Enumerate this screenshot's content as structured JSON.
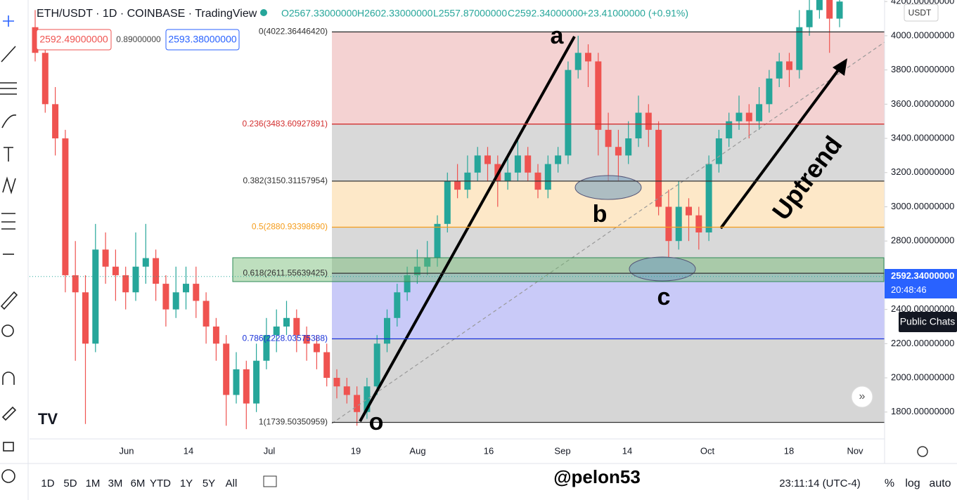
{
  "header": {
    "symbol": "ETH/USDT · 1D · COINBASE · TradingView",
    "open": "O2567.33000000",
    "high": "H2602.33000000",
    "low": "L2557.87000000",
    "close": "C2592.34000000",
    "change": "+23.41000000 (+0.91%)"
  },
  "quotes": {
    "sell": "2592.49000000",
    "spread": "0.89000000",
    "buy": "2593.38000000"
  },
  "currency": "USDT",
  "chart_data": {
    "type": "candlestick",
    "open": [
      4050,
      3900,
      3600,
      3400,
      2600,
      2500,
      2200,
      2750,
      2650,
      2600,
      2500,
      2650,
      2700,
      2550,
      2400,
      2500,
      2550,
      2450,
      2300,
      2200,
      1900,
      2050,
      1850,
      2100,
      2250,
      2300,
      2350,
      2250,
      2200,
      2150,
      2000,
      1950,
      1900,
      1800,
      1950,
      2200,
      2350,
      2500,
      2600,
      2650,
      2700,
      2900,
      3150,
      3100,
      3200,
      3300,
      3250,
      3150,
      3200,
      3300,
      3200,
      3100,
      3250,
      3300,
      3800,
      3900,
      3850,
      3450,
      3350,
      3300,
      3400,
      3550,
      3450,
      3000,
      2800,
      3000,
      2950,
      2850,
      3250,
      3400,
      3500,
      3550,
      3500,
      3600,
      3750,
      3850,
      3800,
      4050,
      4150,
      4250,
      4100
    ],
    "high": [
      4150,
      3950,
      3700,
      3450,
      2800,
      2600,
      2900,
      2850,
      2750,
      2650,
      2850,
      2900,
      2750,
      2600,
      2650,
      2650,
      2650,
      2500,
      2350,
      2250,
      2150,
      2100,
      2200,
      2350,
      2400,
      2450,
      2400,
      2300,
      2250,
      2200,
      2050,
      2000,
      1950,
      2000,
      2250,
      2400,
      2550,
      2650,
      2750,
      2800,
      2950,
      3200,
      3250,
      3300,
      3350,
      3350,
      3300,
      3300,
      3400,
      3350,
      3250,
      3300,
      3350,
      3850,
      4000,
      3950,
      3900,
      3550,
      3450,
      3500,
      3650,
      3600,
      3500,
      3100,
      3150,
      3050,
      3000,
      3300,
      3450,
      3550,
      3650,
      3600,
      3700,
      3800,
      3900,
      3900,
      4150,
      4250,
      4350,
      4300,
      4350
    ],
    "low": [
      3850,
      3550,
      3300,
      2500,
      2100,
      1730,
      2150,
      2550,
      2450,
      2400,
      2450,
      2550,
      2450,
      2300,
      2350,
      2400,
      2350,
      2200,
      2100,
      1720,
      1850,
      1700,
      1800,
      2050,
      2150,
      2250,
      2150,
      2100,
      2050,
      1950,
      1880,
      1850,
      1720,
      1760,
      1900,
      2150,
      2300,
      2450,
      2550,
      2600,
      2650,
      2850,
      3050,
      3050,
      3150,
      3150,
      3000,
      3100,
      3150,
      3150,
      3050,
      3050,
      3200,
      3250,
      3750,
      3700,
      3300,
      3150,
      3150,
      3250,
      3350,
      3350,
      2950,
      2700,
      2750,
      2800,
      2750,
      2800,
      3200,
      3350,
      3450,
      3400,
      3450,
      3550,
      3700,
      3700,
      3750,
      4000,
      4100,
      3900,
      4050
    ],
    "close": [
      3900,
      3600,
      3400,
      2600,
      2500,
      2200,
      2750,
      2650,
      2600,
      2500,
      2650,
      2700,
      2550,
      2400,
      2500,
      2550,
      2450,
      2300,
      2200,
      1900,
      2050,
      1850,
      2100,
      2250,
      2300,
      2350,
      2250,
      2200,
      2150,
      2000,
      1950,
      1900,
      1800,
      1950,
      2200,
      2350,
      2500,
      2600,
      2650,
      2700,
      2900,
      3150,
      3100,
      3200,
      3300,
      3250,
      3150,
      3200,
      3300,
      3200,
      3100,
      3250,
      3300,
      3800,
      3900,
      3850,
      3450,
      3350,
      3300,
      3400,
      3550,
      3450,
      3000,
      2800,
      3000,
      2950,
      2850,
      3250,
      3400,
      3500,
      3550,
      3500,
      3600,
      3750,
      3850,
      3800,
      4050,
      4150,
      4250,
      4100,
      4200
    ],
    "up_color": "#26a69a",
    "down_color": "#ef5350",
    "ylim": [
      1643,
      4209
    ],
    "yticks": [
      {
        "value": 4200,
        "label": "4200.00000000"
      },
      {
        "value": 4000,
        "label": "4000.00000000"
      },
      {
        "value": 3800,
        "label": "3800.00000000"
      },
      {
        "value": 3600,
        "label": "3600.00000000"
      },
      {
        "value": 3400,
        "label": "3400.00000000"
      },
      {
        "value": 3200,
        "label": "3200.00000000"
      },
      {
        "value": 3000,
        "label": "3000.00000000"
      },
      {
        "value": 2800,
        "label": "2800.00000000"
      },
      {
        "value": 2400,
        "label": "2400.00000000"
      },
      {
        "value": 2200,
        "label": "2200.00000000"
      },
      {
        "value": 2000,
        "label": "2000.00000000"
      },
      {
        "value": 1800,
        "label": "1800.00000000"
      }
    ],
    "xticks": [
      "Jun",
      "14",
      "Jul",
      "19",
      "Aug",
      "16",
      "Sep",
      "14",
      "Oct",
      "18",
      "Nov"
    ],
    "last_price": {
      "value": 2592.34,
      "label": "2592.34000000"
    },
    "countdown": "20:48:46",
    "fib_levels": [
      {
        "value": 4022.3644642,
        "label": "0(4022.36446420)",
        "color": "#333333"
      },
      {
        "value": 3483.60927891,
        "label": "0.236(3483.60927891)",
        "color": "#d32f2f"
      },
      {
        "value": 3150.31157954,
        "label": "0.382(3150.31157954)",
        "color": "#333333"
      },
      {
        "value": 2880.9339869,
        "label": "0.5(2880.93398690)",
        "color": "#f59c1a"
      },
      {
        "value": 2611.55639425,
        "label": "0.618(2611.55639425)",
        "color": "#333333"
      },
      {
        "value": 2228.03575388,
        "label": "0.786(2228.03575388)",
        "color": "#1a33d9"
      },
      {
        "value": 1739.50350959,
        "label": "1(1739.50350959)",
        "color": "#333333"
      }
    ],
    "annotations": {
      "a": "a",
      "b": "b",
      "c": "c",
      "o": "o",
      "trend": "Uptrend"
    }
  },
  "buttons": {
    "public_chats": "Public Chats"
  },
  "toolbar": {
    "timeframes": [
      "1D",
      "5D",
      "1M",
      "3M",
      "6M",
      "YTD",
      "1Y",
      "5Y",
      "All"
    ],
    "watermark": "@pelon53",
    "clock": "23:11:14 (UTC-4)",
    "scale_options": [
      "%",
      "log",
      "auto"
    ]
  }
}
